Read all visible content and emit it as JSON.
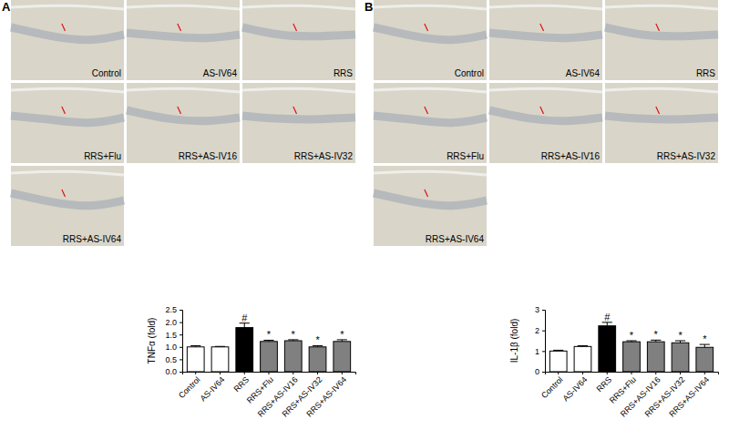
{
  "chart_data": [
    {
      "type": "bar",
      "y_label": "TNFα (fold)",
      "categories": [
        "Control",
        "AS-IV64",
        "RRS",
        "RRS+Flu",
        "RRS+AS-IV16",
        "RRS+AS-IV32",
        "RRS+AS-IV64"
      ],
      "values": [
        1.0,
        1.0,
        1.78,
        1.22,
        1.25,
        1.0,
        1.22
      ],
      "error": [
        0.05,
        0.02,
        0.18,
        0.05,
        0.04,
        0.05,
        0.07
      ],
      "annotations": [
        null,
        null,
        "#",
        "*",
        "*",
        "*",
        "*"
      ],
      "colors": [
        "#ffffff",
        "#ffffff",
        "#000000",
        "#808080",
        "#808080",
        "#808080",
        "#808080"
      ],
      "ylim": [
        0,
        2.5
      ],
      "yticks": [
        {
          "value": 0,
          "label": "0.0"
        },
        {
          "value": 0.5,
          "label": "0.5"
        },
        {
          "value": 1,
          "label": "1.0"
        },
        {
          "value": 1.5,
          "label": "1.5"
        },
        {
          "value": 2,
          "label": "2.0"
        },
        {
          "value": 2.5,
          "label": "2.5"
        }
      ]
    },
    {
      "type": "bar",
      "y_label": "IL-1β (fold)",
      "categories": [
        "Control",
        "AS-IV64",
        "RRS",
        "RRS+Flu",
        "RRS+AS-IV16",
        "RRS+AS-IV32",
        "RRS+AS-IV64"
      ],
      "values": [
        1.0,
        1.22,
        2.22,
        1.45,
        1.45,
        1.4,
        1.18
      ],
      "error": [
        0.04,
        0.04,
        0.17,
        0.05,
        0.08,
        0.1,
        0.14
      ],
      "annotations": [
        null,
        null,
        "#",
        "*",
        "*",
        "*",
        "*"
      ],
      "colors": [
        "#ffffff",
        "#ffffff",
        "#000000",
        "#808080",
        "#808080",
        "#808080",
        "#808080"
      ],
      "ylim": [
        0,
        3
      ],
      "yticks": [
        0,
        1,
        2,
        3
      ]
    }
  ],
  "micrographs": [
    {
      "panel": "A",
      "labels": [
        "Control",
        "AS-IV64",
        "RRS",
        "RRS+Flu",
        "RRS+AS-IV16",
        "RRS+AS-IV32",
        "RRS+AS-IV64"
      ]
    },
    {
      "panel": "B",
      "labels": [
        "Control",
        "AS-IV64",
        "RRS",
        "RRS+Flu",
        "RRS+AS-IV16",
        "RRS+AS-IV32",
        "RRS+AS-IV64"
      ]
    }
  ]
}
